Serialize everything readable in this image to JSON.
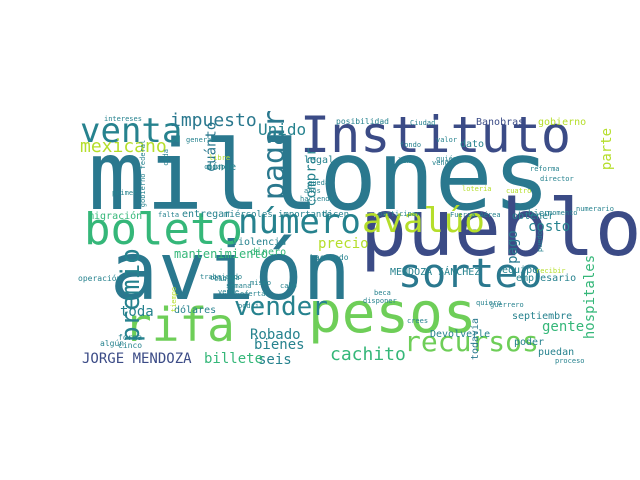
{
  "palette": {
    "dark_purple": "#3b4b86",
    "teal_blue": "#2a788e",
    "teal": "#26828e",
    "green": "#35b779",
    "light_green": "#6ece58",
    "yellow_green": "#b5de2b",
    "yellow": "#dde318"
  },
  "words": [
    "millones",
    "avión",
    "pueblo",
    "pesos",
    "Instituto",
    "boleto",
    "número",
    "rifa",
    "sorteo",
    "avalúo",
    "venta",
    "recursos",
    "pagar",
    "premio",
    "vender",
    "impuesto",
    "mexicano",
    "Unido",
    "JORGE MENDOZA",
    "Robado",
    "bienes",
    "cachito",
    "seis",
    "billete",
    "toda",
    "cuánto",
    "comprar",
    "precio",
    "costo",
    "pago",
    "hospitales",
    "gente",
    "parte",
    "mantenimiento",
    "violencia",
    "Banobras",
    "gobierno",
    "dato",
    "entregar",
    "dónde",
    "migración",
    "dinero",
    "legal",
    "obtener",
    "equipo",
    "empresario",
    "septiembre",
    "Devolverle",
    "MENDOZA SÁNCHEZ",
    "poder",
    "puedan",
    "todavía",
    "dólares",
    "haciendo",
    "posibilidad",
    "participar",
    "general",
    "libre",
    "quién",
    "trabajando",
    "miércoles",
    "importante",
    "dicen",
    "bien",
    "operación",
    "forma",
    "cinco",
    "algún",
    "obtenga",
    "semana",
    "oferta",
    "vende",
    "cabo",
    "disponer",
    "beca",
    "Ciudad",
    "valor",
    "fondo",
    "lunes",
    "venda",
    "lotería",
    "reforma",
    "director",
    "cuatro",
    "momento",
    "Fuerza Aérea",
    "puedo",
    "recibir",
    "quiero",
    "intereses",
    "primer",
    "hacienda",
    "años",
    "queda",
    "causa",
    "mismo",
    "falta",
    "cada",
    "chiapas",
    "gobierno federal",
    "podría",
    "crees",
    "guerrero",
    "proceso",
    "numerario",
    "tiempo"
  ]
}
